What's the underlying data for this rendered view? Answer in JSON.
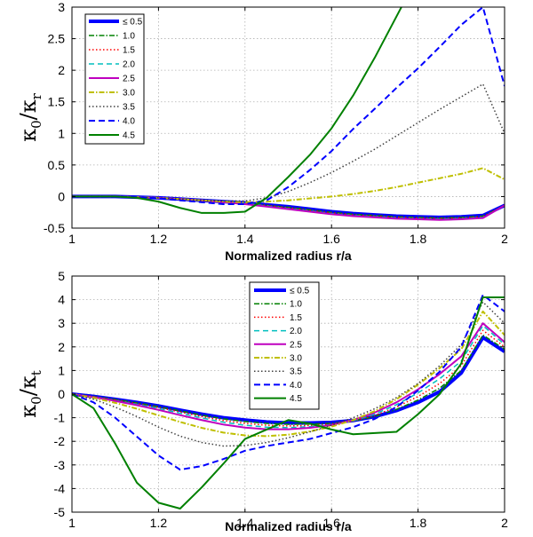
{
  "legend_labels": [
    "≤ 0.5",
    "1.0",
    "1.5",
    "2.0",
    "2.5",
    "3.0",
    "3.5",
    "4.0",
    "4.5"
  ],
  "series_styles": [
    {
      "color": "#0000ff",
      "dash": "",
      "width": 4
    },
    {
      "color": "#008000",
      "dash": "6,2,1.5,2",
      "width": 1.5
    },
    {
      "color": "#ff0000",
      "dash": "1.5,2.5",
      "width": 1.5
    },
    {
      "color": "#00bfbf",
      "dash": "6,4",
      "width": 1.5
    },
    {
      "color": "#bf00bf",
      "dash": "",
      "width": 2
    },
    {
      "color": "#bfbf00",
      "dash": "6,2,1.5,2",
      "width": 2
    },
    {
      "color": "#404040",
      "dash": "1.5,2.5",
      "width": 1.5
    },
    {
      "color": "#0000ff",
      "dash": "7,4",
      "width": 2
    },
    {
      "color": "#008000",
      "dash": "",
      "width": 2
    }
  ],
  "chart_data": [
    {
      "type": "line",
      "title": "",
      "xlabel": "Normalized radius r/a",
      "ylabel": "κ0/κr",
      "ylabel_main": "κ",
      "ylabel_sub1": "0",
      "ylabel_slash": "/κ",
      "ylabel_sub2": "r",
      "xlim": [
        1,
        2
      ],
      "ylim": [
        -0.5,
        3
      ],
      "xticks": [
        1,
        1.2,
        1.4,
        1.6,
        1.8,
        2
      ],
      "xtick_labels": [
        "1",
        "1.2",
        "1.4",
        "1.6",
        "1.8",
        "2"
      ],
      "yticks": [
        -0.5,
        0,
        0.5,
        1,
        1.5,
        2,
        2.5,
        3
      ],
      "ytick_labels": [
        "-0.5",
        "0",
        "0.5",
        "1",
        "1.5",
        "2",
        "2.5",
        "3"
      ],
      "grid": true,
      "legend_position": "top-left",
      "x": [
        1.0,
        1.05,
        1.1,
        1.15,
        1.2,
        1.25,
        1.3,
        1.35,
        1.4,
        1.45,
        1.5,
        1.55,
        1.6,
        1.65,
        1.7,
        1.75,
        1.8,
        1.85,
        1.9,
        1.95,
        2.0
      ],
      "series": [
        {
          "name": "≤ 0.5",
          "values": [
            0,
            0,
            0,
            -0.01,
            -0.02,
            -0.04,
            -0.06,
            -0.08,
            -0.1,
            -0.13,
            -0.16,
            -0.2,
            -0.24,
            -0.27,
            -0.29,
            -0.31,
            -0.32,
            -0.33,
            -0.32,
            -0.3,
            -0.14
          ]
        },
        {
          "name": "1.0",
          "values": [
            0,
            0,
            0,
            -0.01,
            -0.02,
            -0.04,
            -0.06,
            -0.08,
            -0.1,
            -0.14,
            -0.17,
            -0.21,
            -0.25,
            -0.28,
            -0.3,
            -0.32,
            -0.33,
            -0.34,
            -0.33,
            -0.31,
            -0.14
          ]
        },
        {
          "name": "1.5",
          "values": [
            0,
            0,
            0,
            -0.01,
            -0.02,
            -0.04,
            -0.06,
            -0.08,
            -0.11,
            -0.14,
            -0.18,
            -0.22,
            -0.26,
            -0.29,
            -0.31,
            -0.33,
            -0.34,
            -0.35,
            -0.34,
            -0.32,
            -0.14
          ]
        },
        {
          "name": "2.0",
          "values": [
            0,
            0,
            0,
            -0.01,
            -0.02,
            -0.04,
            -0.06,
            -0.08,
            -0.11,
            -0.15,
            -0.19,
            -0.23,
            -0.27,
            -0.3,
            -0.32,
            -0.34,
            -0.35,
            -0.36,
            -0.35,
            -0.33,
            -0.14
          ]
        },
        {
          "name": "2.5",
          "values": [
            0,
            0,
            0,
            -0.01,
            -0.02,
            -0.04,
            -0.06,
            -0.09,
            -0.12,
            -0.16,
            -0.2,
            -0.24,
            -0.28,
            -0.31,
            -0.33,
            -0.35,
            -0.36,
            -0.37,
            -0.36,
            -0.34,
            -0.14
          ]
        },
        {
          "name": "3.0",
          "values": [
            0,
            0,
            0,
            -0.01,
            -0.02,
            -0.04,
            -0.06,
            -0.08,
            -0.09,
            -0.08,
            -0.06,
            -0.03,
            0.0,
            0.04,
            0.09,
            0.15,
            0.22,
            0.29,
            0.36,
            0.45,
            0.27
          ]
        },
        {
          "name": "3.5",
          "values": [
            0,
            0,
            0,
            -0.01,
            -0.02,
            -0.04,
            -0.06,
            -0.07,
            -0.07,
            -0.02,
            0.08,
            0.22,
            0.38,
            0.56,
            0.75,
            0.96,
            1.17,
            1.38,
            1.58,
            1.78,
            1.0
          ]
        },
        {
          "name": "4.0",
          "values": [
            0,
            0,
            0,
            -0.01,
            -0.03,
            -0.06,
            -0.09,
            -0.12,
            -0.12,
            -0.06,
            0.15,
            0.42,
            0.72,
            1.07,
            1.39,
            1.72,
            2.03,
            2.37,
            2.72,
            3.0,
            1.75
          ]
        },
        {
          "name": "4.5",
          "values": [
            0,
            0,
            0,
            -0.02,
            -0.08,
            -0.18,
            -0.26,
            -0.26,
            -0.24,
            -0.02,
            0.31,
            0.66,
            1.08,
            1.6,
            2.2,
            2.85,
            3.5,
            null,
            null,
            null,
            null
          ]
        }
      ]
    },
    {
      "type": "line",
      "title": "",
      "xlabel": "Normalized radius r/a",
      "ylabel": "κ0/κt",
      "ylabel_main": "κ",
      "ylabel_sub1": "0",
      "ylabel_slash": "/κ",
      "ylabel_sub2": "t",
      "xlim": [
        1,
        2
      ],
      "ylim": [
        -5,
        5
      ],
      "xticks": [
        1,
        1.2,
        1.4,
        1.6,
        1.8,
        2
      ],
      "xtick_labels": [
        "1",
        "1.2",
        "1.4",
        "1.6",
        "1.8",
        "2"
      ],
      "yticks": [
        -5,
        -4,
        -3,
        -2,
        -1,
        0,
        1,
        2,
        3,
        4,
        5
      ],
      "ytick_labels": [
        "-5",
        "-4",
        "-3",
        "-2",
        "-1",
        "0",
        "1",
        "2",
        "3",
        "4",
        "5"
      ],
      "grid": true,
      "legend_position": "top-center",
      "x": [
        1.0,
        1.05,
        1.1,
        1.15,
        1.2,
        1.25,
        1.3,
        1.35,
        1.4,
        1.45,
        1.5,
        1.55,
        1.6,
        1.65,
        1.7,
        1.75,
        1.8,
        1.85,
        1.9,
        1.95,
        2.0
      ],
      "series": [
        {
          "name": "≤ 0.5",
          "values": [
            0,
            -0.1,
            -0.22,
            -0.35,
            -0.5,
            -0.68,
            -0.85,
            -1.0,
            -1.1,
            -1.18,
            -1.22,
            -1.22,
            -1.2,
            -1.12,
            -0.95,
            -0.7,
            -0.35,
            0.1,
            0.9,
            2.4,
            1.8
          ]
        },
        {
          "name": "1.0",
          "values": [
            0,
            -0.1,
            -0.23,
            -0.37,
            -0.53,
            -0.71,
            -0.89,
            -1.05,
            -1.16,
            -1.24,
            -1.28,
            -1.27,
            -1.24,
            -1.14,
            -0.95,
            -0.65,
            -0.25,
            0.25,
            1.0,
            2.5,
            1.9
          ]
        },
        {
          "name": "1.5",
          "values": [
            0,
            -0.11,
            -0.25,
            -0.4,
            -0.57,
            -0.76,
            -0.95,
            -1.12,
            -1.24,
            -1.32,
            -1.35,
            -1.33,
            -1.27,
            -1.14,
            -0.9,
            -0.55,
            -0.1,
            0.45,
            1.2,
            2.7,
            2.0
          ]
        },
        {
          "name": "2.0",
          "values": [
            0,
            -0.12,
            -0.27,
            -0.43,
            -0.61,
            -0.81,
            -1.01,
            -1.19,
            -1.32,
            -1.4,
            -1.42,
            -1.38,
            -1.29,
            -1.13,
            -0.85,
            -0.45,
            0.05,
            0.65,
            1.4,
            2.9,
            2.1
          ]
        },
        {
          "name": "2.5",
          "values": [
            0,
            -0.13,
            -0.29,
            -0.47,
            -0.67,
            -0.89,
            -1.1,
            -1.29,
            -1.42,
            -1.49,
            -1.49,
            -1.43,
            -1.31,
            -1.1,
            -0.78,
            -0.35,
            0.2,
            0.85,
            1.6,
            3.0,
            2.2
          ]
        },
        {
          "name": "3.0",
          "values": [
            0,
            -0.16,
            -0.37,
            -0.62,
            -0.9,
            -1.18,
            -1.43,
            -1.63,
            -1.75,
            -1.78,
            -1.72,
            -1.58,
            -1.38,
            -1.1,
            -0.72,
            -0.22,
            0.4,
            1.1,
            1.9,
            3.5,
            2.5
          ]
        },
        {
          "name": "3.5",
          "values": [
            0,
            -0.22,
            -0.55,
            -0.95,
            -1.4,
            -1.78,
            -2.05,
            -2.2,
            -2.18,
            -2.05,
            -1.85,
            -1.6,
            -1.32,
            -1.0,
            -0.62,
            -0.15,
            0.45,
            1.2,
            2.1,
            3.9,
            3.0
          ]
        },
        {
          "name": "4.0",
          "values": [
            0,
            -0.35,
            -1.0,
            -1.8,
            -2.6,
            -3.2,
            -3.05,
            -2.75,
            -2.4,
            -2.2,
            -2.05,
            -1.9,
            -1.65,
            -1.4,
            -1.05,
            -0.55,
            0.15,
            0.95,
            2.0,
            4.2,
            3.5
          ]
        },
        {
          "name": "4.5",
          "values": [
            0,
            -0.6,
            -2.1,
            -3.75,
            -4.6,
            -4.85,
            -3.95,
            -2.95,
            -1.9,
            -1.5,
            -1.1,
            -1.25,
            -1.5,
            -1.7,
            -1.65,
            -1.6,
            -0.85,
            0.0,
            1.3,
            4.1,
            4.1
          ]
        }
      ]
    }
  ]
}
